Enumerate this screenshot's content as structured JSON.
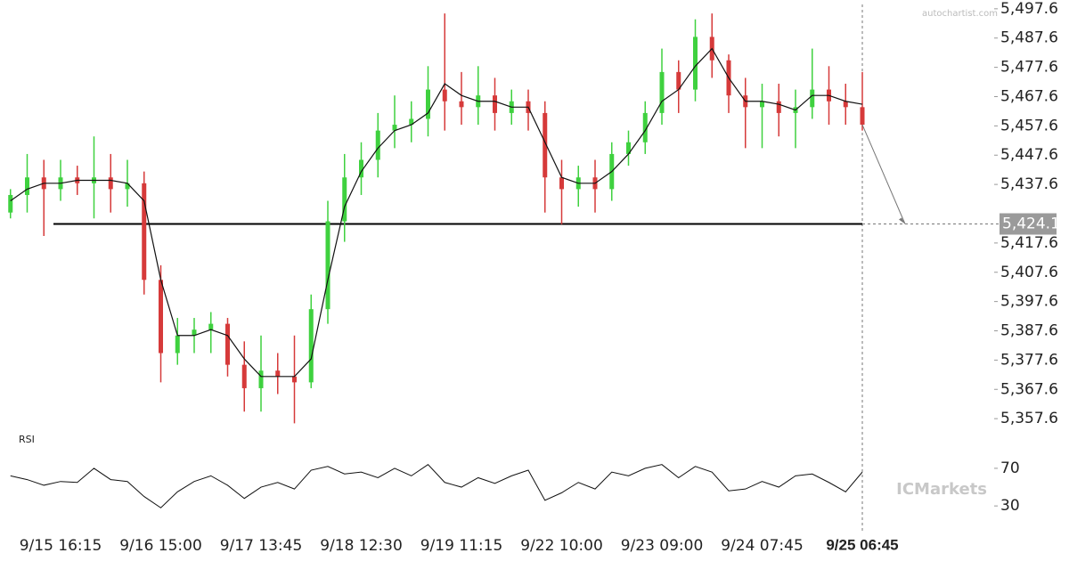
{
  "chart_data": {
    "type": "candlestick",
    "watermark": "autochartist.com",
    "broker": "ICMarkets",
    "categories": [
      null,
      null,
      null,
      "9/15 16:15",
      null,
      null,
      null,
      null,
      null,
      "9/16 15:00",
      null,
      null,
      null,
      null,
      null,
      "9/17 13:45",
      null,
      null,
      null,
      null,
      null,
      "9/18 12:30",
      null,
      null,
      null,
      null,
      null,
      "9/19 11:15",
      null,
      null,
      null,
      null,
      null,
      "9/22 10:00",
      null,
      null,
      null,
      null,
      null,
      "9/23 09:00",
      null,
      null,
      null,
      null,
      null,
      "9/24 07:45",
      null,
      null,
      null,
      null,
      null,
      "9/25 06:45"
    ],
    "open": [
      5428,
      5434,
      5440,
      5436,
      5440,
      5438,
      5440,
      5436,
      5438,
      5405,
      5380,
      5386,
      5388,
      5390,
      5376,
      5368,
      5374,
      5372,
      5370,
      5395,
      5425,
      5440,
      5446,
      5456,
      5458,
      5460,
      5470,
      5466,
      5464,
      5468,
      5462,
      5466,
      5462,
      5440,
      5436,
      5440,
      5436,
      5448,
      5452,
      5462,
      5476,
      5470,
      5488,
      5480,
      5468,
      5464,
      5466,
      5462,
      5464,
      5470,
      5466,
      5464
    ],
    "high": [
      5436,
      5448,
      5446,
      5446,
      5444,
      5454,
      5448,
      5446,
      5442,
      5410,
      5392,
      5392,
      5394,
      5392,
      5384,
      5386,
      5380,
      5386,
      5400,
      5432,
      5448,
      5452,
      5462,
      5468,
      5466,
      5478,
      5496,
      5476,
      5478,
      5474,
      5470,
      5470,
      5466,
      5446,
      5444,
      5446,
      5452,
      5456,
      5466,
      5484,
      5480,
      5494,
      5496,
      5482,
      5474,
      5472,
      5472,
      5470,
      5484,
      5478,
      5472,
      5476
    ],
    "low": [
      5426,
      5428,
      5420,
      5432,
      5434,
      5426,
      5428,
      5430,
      5400,
      5370,
      5376,
      5380,
      5380,
      5372,
      5360,
      5360,
      5366,
      5356,
      5368,
      5390,
      5418,
      5434,
      5440,
      5450,
      5452,
      5454,
      5456,
      5458,
      5458,
      5456,
      5458,
      5456,
      5428,
      5424,
      5430,
      5428,
      5432,
      5444,
      5448,
      5458,
      5462,
      5466,
      5474,
      5462,
      5450,
      5450,
      5454,
      5450,
      5460,
      5458,
      5458,
      5456
    ],
    "close": [
      5434,
      5440,
      5436,
      5440,
      5438,
      5440,
      5436,
      5438,
      5405,
      5380,
      5386,
      5388,
      5390,
      5376,
      5368,
      5374,
      5372,
      5370,
      5395,
      5425,
      5440,
      5446,
      5456,
      5458,
      5460,
      5470,
      5466,
      5464,
      5468,
      5462,
      5466,
      5462,
      5440,
      5436,
      5440,
      5436,
      5448,
      5452,
      5462,
      5476,
      5470,
      5488,
      5480,
      5468,
      5464,
      5466,
      5462,
      5464,
      5470,
      5466,
      5464,
      5458
    ],
    "up_color": "#3fd13f",
    "down_color": "#d63a3a",
    "moving_average": {
      "color": "#111111",
      "values": [
        5432,
        5436,
        5438,
        5438,
        5439,
        5439,
        5439,
        5438,
        5432,
        5405,
        5386,
        5386,
        5388,
        5386,
        5378,
        5372,
        5372,
        5372,
        5378,
        5405,
        5430,
        5442,
        5450,
        5456,
        5458,
        5462,
        5472,
        5468,
        5466,
        5466,
        5464,
        5464,
        5452,
        5440,
        5438,
        5438,
        5442,
        5448,
        5456,
        5466,
        5470,
        5478,
        5484,
        5474,
        5466,
        5466,
        5465,
        5463,
        5468,
        5468,
        5466,
        5465
      ]
    },
    "ylim": [
      5354.6,
      5500.6
    ],
    "yticks": [
      {
        "value": 5357.6,
        "label": "5,357.6"
      },
      {
        "value": 5367.6,
        "label": "5,367.6"
      },
      {
        "value": 5377.6,
        "label": "5,377.6"
      },
      {
        "value": 5387.6,
        "label": "5,387.6"
      },
      {
        "value": 5397.6,
        "label": "5,397.6"
      },
      {
        "value": 5407.6,
        "label": "5,407.6"
      },
      {
        "value": 5417.6,
        "label": "5,417.6"
      },
      {
        "value": 5437.6,
        "label": "5,437.6"
      },
      {
        "value": 5447.6,
        "label": "5,447.6"
      },
      {
        "value": 5457.6,
        "label": "5,457.6"
      },
      {
        "value": 5467.6,
        "label": "5,467.6"
      },
      {
        "value": 5477.6,
        "label": "5,477.6"
      },
      {
        "value": 5487.6,
        "label": "5,487.6"
      },
      {
        "value": 5497.6,
        "label": "5,497.6"
      }
    ],
    "support_level": {
      "value": 5424.1,
      "label": "5,424.1"
    },
    "rsi": {
      "title": "RSI",
      "ylim": [
        15,
        104
      ],
      "yticks": [
        30,
        70
      ],
      "values": [
        62,
        58,
        52,
        56,
        55,
        70,
        58,
        56,
        40,
        28,
        45,
        56,
        62,
        52,
        38,
        50,
        55,
        48,
        68,
        72,
        64,
        66,
        60,
        70,
        62,
        74,
        55,
        50,
        60,
        54,
        62,
        68,
        36,
        44,
        55,
        48,
        66,
        62,
        70,
        74,
        60,
        72,
        66,
        46,
        48,
        56,
        50,
        62,
        64,
        55,
        45,
        66
      ]
    }
  }
}
